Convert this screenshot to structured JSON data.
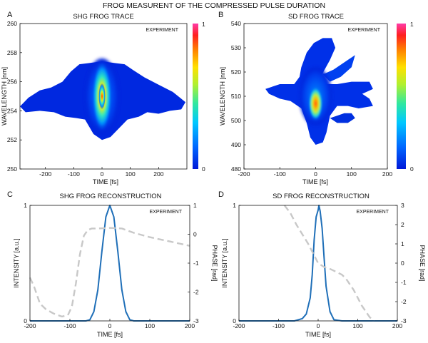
{
  "figure_title": "FROG MEASURENT OF THE COMPRESSED PULSE DURATION",
  "chart_data": [
    {
      "id": "A",
      "letter": "A",
      "type": "heatmap",
      "title": "SHG FROG TRACE",
      "xlabel": "TIME [fs]",
      "ylabel": "WAVELENGTH [nm]",
      "annotation": "EXPERIMENT",
      "xlim": [
        -290,
        300
      ],
      "ylim": [
        250,
        260
      ],
      "xticks": [
        -200,
        -100,
        0,
        100,
        200
      ],
      "yticks": [
        250,
        252,
        254,
        256,
        258,
        260
      ],
      "colorbar": {
        "min": 0,
        "max": 1,
        "ticks": [
          "0",
          "1"
        ],
        "colormap": "jet-like"
      },
      "peak": {
        "x": 0,
        "y": 255.0
      },
      "colormap_stops": [
        "#0018d8",
        "#0066ff",
        "#00c8ff",
        "#30e8a0",
        "#b0f030",
        "#ffe000",
        "#ff8000",
        "#ff2020",
        "#ff3ca8"
      ]
    },
    {
      "id": "B",
      "letter": "B",
      "type": "heatmap",
      "title": "SD FROG TRACE",
      "xlabel": "TIME [fs]",
      "ylabel": "WAVELENGTH [nm]",
      "annotation": "EXPERIMENT",
      "xlim": [
        -200,
        200
      ],
      "ylim": [
        480,
        540
      ],
      "xticks": [
        -200,
        -100,
        0,
        100,
        200
      ],
      "yticks": [
        480,
        490,
        500,
        510,
        520,
        530,
        540
      ],
      "colorbar": {
        "min": 0,
        "max": 1,
        "ticks": [
          "0",
          "1"
        ],
        "colormap": "jet-like"
      },
      "peak": {
        "x": 0,
        "y": 507
      }
    },
    {
      "id": "C",
      "letter": "C",
      "type": "line",
      "title": "SHG FROG RECONSTRUCTION",
      "xlabel": "TIME [fs]",
      "ylabel": "INTENSITY [a.u.]",
      "y2label": "PHASE [rad]",
      "annotation": "EXPERIMENT",
      "xlim": [
        -200,
        200
      ],
      "ylim": [
        0,
        1
      ],
      "y2lim": [
        -3,
        1
      ],
      "xticks": [
        -200,
        -100,
        0,
        100,
        200
      ],
      "yticks": [
        0,
        1
      ],
      "y2ticks": [
        1,
        0,
        -1,
        -2,
        -3
      ],
      "series": [
        {
          "role": "intensity",
          "color": "#1f6fb8",
          "x": [
            -200,
            -100,
            -60,
            -50,
            -40,
            -30,
            -20,
            -10,
            0,
            10,
            20,
            30,
            40,
            50,
            60,
            100,
            200
          ],
          "values": [
            0,
            0,
            0.0,
            0.01,
            0.08,
            0.27,
            0.6,
            0.9,
            1.0,
            0.9,
            0.6,
            0.27,
            0.08,
            0.01,
            0.0,
            0.0,
            0.0
          ]
        },
        {
          "role": "phase",
          "color": "#c8c8c8",
          "x": [
            -200,
            -190,
            -175,
            -160,
            -140,
            -120,
            -105,
            -95,
            -85,
            -75,
            -65,
            -55,
            -45,
            -30,
            0,
            30,
            60,
            100,
            150,
            200
          ],
          "values": [
            -1.5,
            -1.8,
            -2.4,
            -2.6,
            -2.75,
            -2.85,
            -2.8,
            -2.5,
            -1.7,
            -0.7,
            -0.05,
            0.15,
            0.2,
            0.2,
            0.22,
            0.2,
            0.05,
            -0.1,
            -0.25,
            -0.4
          ]
        }
      ]
    },
    {
      "id": "D",
      "letter": "D",
      "type": "line",
      "title": "SD FROG RECONSTRUCTION",
      "xlabel": "TIME [fs]",
      "ylabel": "INTENSITY [a.u.]",
      "y2label": "PHASE [rad]",
      "annotation": "EXPERIMENT",
      "xlim": [
        -200,
        200
      ],
      "ylim": [
        0,
        1
      ],
      "y2lim": [
        -3,
        3
      ],
      "xticks": [
        -200,
        -100,
        0,
        100,
        200
      ],
      "yticks": [
        0,
        1
      ],
      "y2ticks": [
        3,
        2,
        1,
        0,
        -1,
        -2,
        -3
      ],
      "series": [
        {
          "role": "intensity",
          "color": "#1f6fb8",
          "x": [
            -200,
            -60,
            -40,
            -30,
            -20,
            -15,
            -10,
            -5,
            0,
            2,
            5,
            10,
            15,
            20,
            30,
            40,
            60,
            200
          ],
          "values": [
            0,
            0,
            0.02,
            0.06,
            0.2,
            0.4,
            0.7,
            0.9,
            0.96,
            1.0,
            0.95,
            0.8,
            0.55,
            0.3,
            0.08,
            0.01,
            0,
            0
          ]
        },
        {
          "role": "phase",
          "color": "#c8c8c8",
          "x": [
            -85,
            -70,
            -55,
            -40,
            -25,
            -10,
            0,
            15,
            30,
            45,
            60,
            70,
            80,
            90,
            100,
            110,
            120,
            130,
            140
          ],
          "values": [
            3.0,
            2.6,
            2.0,
            1.5,
            1.0,
            0.4,
            0.0,
            -0.2,
            -0.3,
            -0.45,
            -0.6,
            -0.8,
            -1.1,
            -1.4,
            -1.8,
            -2.2,
            -2.5,
            -2.8,
            -3.0
          ]
        }
      ]
    }
  ]
}
